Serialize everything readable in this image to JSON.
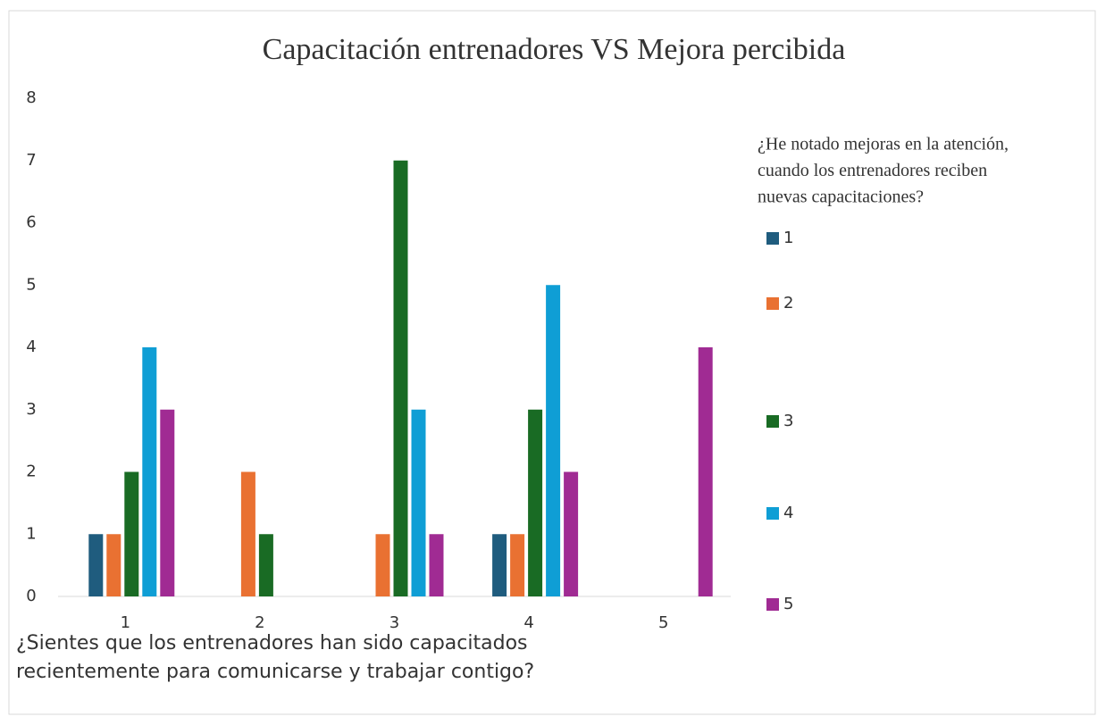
{
  "chart_data": {
    "type": "bar",
    "title": "Capacitación entrenadores VS Mejora percibida",
    "x_label": [
      "¿Sientes que los entrenadores han sido capacitados",
      "recientemente para comunicarse y trabajar contigo?"
    ],
    "legend_title": [
      "¿He notado mejoras en la atención,",
      "cuando los entrenadores reciben",
      "nuevas capacitaciones?"
    ],
    "categories": [
      "1",
      "2",
      "3",
      "4",
      "5"
    ],
    "series": [
      {
        "name": "1",
        "color": "#1f5c7e",
        "values": [
          1,
          0,
          0,
          1,
          0
        ]
      },
      {
        "name": "2",
        "color": "#e97132",
        "values": [
          1,
          2,
          1,
          1,
          0
        ]
      },
      {
        "name": "3",
        "color": "#196b24",
        "values": [
          2,
          1,
          7,
          3,
          0
        ]
      },
      {
        "name": "4",
        "color": "#0f9ed5",
        "values": [
          4,
          0,
          3,
          5,
          0
        ]
      },
      {
        "name": "5",
        "color": "#a02b93",
        "values": [
          3,
          0,
          1,
          2,
          4
        ]
      }
    ],
    "ylim": [
      0,
      8
    ],
    "yticks": [
      0,
      1,
      2,
      3,
      4,
      5,
      6,
      7,
      8
    ],
    "grid": false,
    "legend": "right"
  }
}
